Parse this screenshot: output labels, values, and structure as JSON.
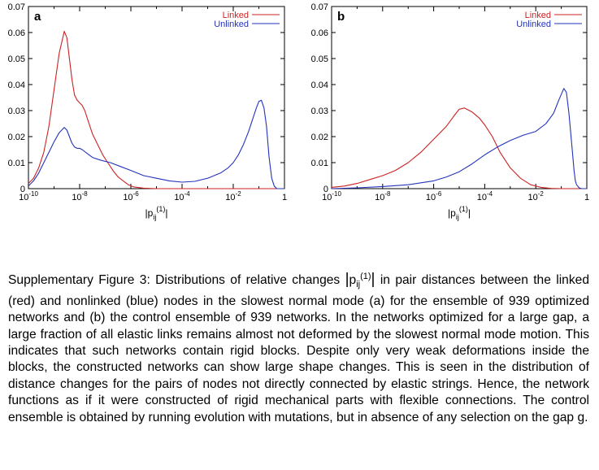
{
  "chart_data": [
    {
      "type": "line",
      "panel_label": "a",
      "xlabel": "|p_ij^(1)|",
      "x_scale": "log",
      "xlim": [
        1e-10,
        1
      ],
      "ylim": [
        0,
        0.07
      ],
      "xticks": [
        {
          "value": 1e-10,
          "base": "10",
          "exp": "-10"
        },
        {
          "value": 1e-08,
          "base": "10",
          "exp": "-8"
        },
        {
          "value": 1e-06,
          "base": "10",
          "exp": "-6"
        },
        {
          "value": 0.0001,
          "base": "10",
          "exp": "-4"
        },
        {
          "value": 0.01,
          "base": "10",
          "exp": "-2"
        },
        {
          "value": 1,
          "base": "1",
          "exp": ""
        }
      ],
      "yticks": [
        "0",
        "0.01",
        "0.02",
        "0.03",
        "0.04",
        "0.05",
        "0.06",
        "0.07"
      ],
      "legend_position": "top-right",
      "series": [
        {
          "name": "Linked",
          "color": "#cc2222",
          "x": [
            -10,
            -9.8,
            -9.6,
            -9.4,
            -9.2,
            -9.0,
            -8.8,
            -8.6,
            -8.5,
            -8.4,
            -8.3,
            -8.2,
            -8.1,
            -8.0,
            -7.9,
            -7.8,
            -7.7,
            -7.6,
            -7.5,
            -7.3,
            -7.1,
            -6.9,
            -6.7,
            -6.5,
            -6.3,
            -6.1,
            -5.9,
            -5.5,
            -5.0,
            -4.0,
            -3.0,
            -2.0,
            0
          ],
          "y": [
            0.002,
            0.004,
            0.008,
            0.014,
            0.024,
            0.038,
            0.052,
            0.0605,
            0.058,
            0.05,
            0.042,
            0.036,
            0.034,
            0.033,
            0.032,
            0.03,
            0.027,
            0.024,
            0.021,
            0.017,
            0.013,
            0.01,
            0.007,
            0.0045,
            0.003,
            0.0015,
            0.0007,
            0.0002,
            0.0,
            0.0,
            0.0,
            0.0,
            0.0
          ]
        },
        {
          "name": "Unlinked",
          "color": "#2233bb",
          "x": [
            -10,
            -9.8,
            -9.6,
            -9.4,
            -9.2,
            -9.0,
            -8.8,
            -8.6,
            -8.5,
            -8.4,
            -8.3,
            -8.2,
            -8.1,
            -8.0,
            -7.9,
            -7.7,
            -7.5,
            -7.2,
            -6.8,
            -6.4,
            -6.0,
            -5.5,
            -5.0,
            -4.5,
            -4.0,
            -3.5,
            -3.0,
            -2.5,
            -2.2,
            -2.0,
            -1.8,
            -1.6,
            -1.4,
            -1.2,
            -1.1,
            -1.0,
            -0.9,
            -0.8,
            -0.7,
            -0.6,
            -0.5,
            -0.4,
            -0.3,
            -0.2,
            -0.1,
            0
          ],
          "y": [
            0.001,
            0.003,
            0.006,
            0.01,
            0.014,
            0.018,
            0.0215,
            0.0235,
            0.0225,
            0.02,
            0.0175,
            0.016,
            0.0155,
            0.0155,
            0.015,
            0.0135,
            0.012,
            0.011,
            0.01,
            0.0085,
            0.007,
            0.005,
            0.004,
            0.003,
            0.0025,
            0.0028,
            0.004,
            0.006,
            0.008,
            0.01,
            0.013,
            0.017,
            0.022,
            0.028,
            0.031,
            0.0335,
            0.034,
            0.031,
            0.024,
            0.012,
            0.004,
            0.001,
            0.0,
            0.0,
            0.0,
            0.0
          ]
        }
      ]
    },
    {
      "type": "line",
      "panel_label": "b",
      "xlabel": "|p_ij^(1)|",
      "x_scale": "log",
      "xlim": [
        1e-10,
        1
      ],
      "ylim": [
        0,
        0.07
      ],
      "xticks": [
        {
          "value": 1e-10,
          "base": "10",
          "exp": "-10"
        },
        {
          "value": 1e-08,
          "base": "10",
          "exp": "-8"
        },
        {
          "value": 1e-06,
          "base": "10",
          "exp": "-6"
        },
        {
          "value": 0.0001,
          "base": "10",
          "exp": "-4"
        },
        {
          "value": 0.01,
          "base": "10",
          "exp": "-2"
        },
        {
          "value": 1,
          "base": "1",
          "exp": ""
        }
      ],
      "yticks": [
        "0",
        "0.01",
        "0.02",
        "0.03",
        "0.04",
        "0.05",
        "0.06",
        "0.07"
      ],
      "legend_position": "top-right",
      "series": [
        {
          "name": "Linked",
          "color": "#cc2222",
          "x": [
            -10,
            -9.5,
            -9.0,
            -8.5,
            -8.0,
            -7.5,
            -7.0,
            -6.5,
            -6.0,
            -5.5,
            -5.2,
            -5.0,
            -4.8,
            -4.5,
            -4.2,
            -4.0,
            -3.7,
            -3.4,
            -3.0,
            -2.6,
            -2.2,
            -1.8,
            -1.4,
            -1.0,
            -0.6,
            0
          ],
          "y": [
            0.0005,
            0.001,
            0.002,
            0.0035,
            0.005,
            0.007,
            0.01,
            0.014,
            0.019,
            0.024,
            0.028,
            0.0305,
            0.031,
            0.0295,
            0.027,
            0.0245,
            0.02,
            0.014,
            0.008,
            0.004,
            0.0015,
            0.0005,
            0.0001,
            0.0,
            0.0,
            0.0
          ]
        },
        {
          "name": "Unlinked",
          "color": "#2233bb",
          "x": [
            -10,
            -9.0,
            -8.0,
            -7.0,
            -6.0,
            -5.5,
            -5.0,
            -4.5,
            -4.0,
            -3.5,
            -3.0,
            -2.5,
            -2.0,
            -1.6,
            -1.3,
            -1.1,
            -0.9,
            -0.8,
            -0.7,
            -0.6,
            -0.5,
            -0.45,
            -0.4,
            -0.3,
            -0.2,
            0
          ],
          "y": [
            0.0,
            0.0003,
            0.0008,
            0.0015,
            0.003,
            0.0045,
            0.0065,
            0.0095,
            0.013,
            0.016,
            0.0185,
            0.0205,
            0.022,
            0.025,
            0.029,
            0.034,
            0.0385,
            0.037,
            0.029,
            0.018,
            0.007,
            0.003,
            0.0015,
            0.0003,
            0.0,
            0.0
          ]
        }
      ]
    }
  ],
  "caption": {
    "prefix": "Supplementary Figure 3: Distributions of relative changes ",
    "symbol_main": "p",
    "symbol_sub": "ij",
    "symbol_sup": "(1)",
    "body": " in pair distances between the linked (red) and nonlinked (blue) nodes in the slowest normal mode (a) for the ensemble of 939 optimized networks and (b) the control ensemble of 939 networks. In the networks optimized for a large gap, a large fraction of all elastic links remains almost not deformed by the slowest normal mode motion. This indicates that such networks contain rigid blocks. Despite only very weak deformations inside the blocks, the constructed networks can show large shape changes. This is seen in the distribution of distance changes for the pairs of nodes not directly connected by elastic strings. Hence, the network functions as if it were constructed of rigid mechanical parts with flexible connections. The control ensemble is obtained by running evolution with mutations, but in absence of any selection on the gap g."
  }
}
